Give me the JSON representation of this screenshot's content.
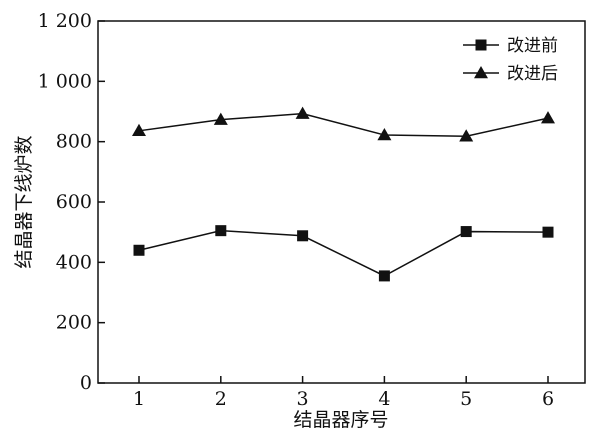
{
  "chart_data": {
    "type": "line",
    "title": "",
    "xlabel": "结晶器序号",
    "ylabel": "结晶器下线炉数",
    "x": [
      1,
      2,
      3,
      4,
      5,
      6
    ],
    "x_ticks": [
      "1",
      "2",
      "3",
      "4",
      "5",
      "6"
    ],
    "ylim": [
      0,
      1200
    ],
    "y_ticks": [
      "0",
      "200",
      "400",
      "600",
      "800",
      "1 000",
      "1 200"
    ],
    "y_tick_values": [
      0,
      200,
      400,
      600,
      800,
      1000,
      1200
    ],
    "grid": false,
    "legend_position": "top-right",
    "series": [
      {
        "name": "改进前",
        "marker": "square",
        "color": "#111111",
        "values": [
          440,
          505,
          488,
          355,
          502,
          500
        ]
      },
      {
        "name": "改进后",
        "marker": "triangle",
        "color": "#111111",
        "values": [
          836,
          873,
          893,
          822,
          818,
          878
        ]
      }
    ]
  }
}
